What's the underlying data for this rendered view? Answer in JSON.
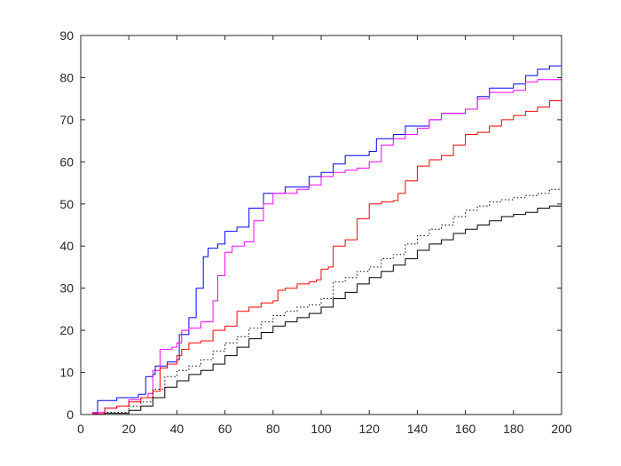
{
  "chart_data": {
    "type": "line",
    "title": "",
    "xlabel": "",
    "ylabel": "",
    "xlim": [
      0,
      200
    ],
    "ylim": [
      0,
      90
    ],
    "grid": false,
    "legend": "none",
    "x_ticks": [
      0,
      20,
      40,
      60,
      80,
      100,
      120,
      140,
      160,
      180,
      200
    ],
    "y_ticks": [
      0,
      10,
      20,
      30,
      40,
      50,
      60,
      70,
      80,
      90
    ],
    "series": [
      {
        "color": "#0000ff",
        "style": "solid",
        "points": [
          [
            0,
            0
          ],
          [
            5,
            0.3
          ],
          [
            7,
            3.3
          ],
          [
            15,
            4
          ],
          [
            20,
            4
          ],
          [
            24,
            4.8
          ],
          [
            27,
            9
          ],
          [
            30,
            9.5
          ],
          [
            31,
            11.5
          ],
          [
            36,
            12.5
          ],
          [
            40,
            13
          ],
          [
            41,
            19
          ],
          [
            45,
            23
          ],
          [
            48,
            30
          ],
          [
            51,
            37.5
          ],
          [
            53,
            39.5
          ],
          [
            57,
            40.5
          ],
          [
            60,
            43.5
          ],
          [
            65,
            44.5
          ],
          [
            70,
            49
          ],
          [
            76,
            52.5
          ],
          [
            85,
            54
          ],
          [
            95,
            56.5
          ],
          [
            100,
            57.5
          ],
          [
            105,
            59.5
          ],
          [
            110,
            61.5
          ],
          [
            120,
            62.5
          ],
          [
            123,
            65.5
          ],
          [
            130,
            66.5
          ],
          [
            135,
            68.5
          ],
          [
            145,
            70
          ],
          [
            150,
            71.5
          ],
          [
            160,
            72.5
          ],
          [
            165,
            75.5
          ],
          [
            170,
            77.5
          ],
          [
            180,
            78.5
          ],
          [
            185,
            80.5
          ],
          [
            190,
            82
          ],
          [
            195,
            82.8
          ],
          [
            200,
            83
          ]
        ]
      },
      {
        "color": "#ff00ff",
        "style": "solid",
        "points": [
          [
            0,
            0
          ],
          [
            5,
            0.5
          ],
          [
            10,
            1.5
          ],
          [
            15,
            2
          ],
          [
            20,
            3.5
          ],
          [
            25,
            4
          ],
          [
            28,
            5
          ],
          [
            30,
            10.5
          ],
          [
            33,
            15.5
          ],
          [
            38,
            16
          ],
          [
            40,
            17
          ],
          [
            42,
            20
          ],
          [
            45,
            20.5
          ],
          [
            50,
            22
          ],
          [
            55,
            27
          ],
          [
            57,
            33
          ],
          [
            60,
            38.5
          ],
          [
            63,
            40
          ],
          [
            68,
            41
          ],
          [
            72,
            46
          ],
          [
            76,
            50
          ],
          [
            80,
            52.5
          ],
          [
            90,
            53.5
          ],
          [
            95,
            54.5
          ],
          [
            100,
            56.5
          ],
          [
            105,
            57.5
          ],
          [
            110,
            58
          ],
          [
            115,
            58.5
          ],
          [
            120,
            60
          ],
          [
            125,
            64
          ],
          [
            130,
            65.5
          ],
          [
            135,
            66.5
          ],
          [
            140,
            68
          ],
          [
            145,
            70
          ],
          [
            150,
            71.5
          ],
          [
            160,
            72.5
          ],
          [
            165,
            75
          ],
          [
            170,
            76.5
          ],
          [
            180,
            77
          ],
          [
            185,
            79
          ],
          [
            190,
            79.5
          ],
          [
            200,
            80
          ]
        ]
      },
      {
        "color": "#ff0000",
        "style": "solid",
        "points": [
          [
            0,
            0
          ],
          [
            5,
            0.2
          ],
          [
            10,
            1.5
          ],
          [
            15,
            2
          ],
          [
            20,
            3
          ],
          [
            25,
            4
          ],
          [
            30,
            5.5
          ],
          [
            33,
            11
          ],
          [
            36,
            12
          ],
          [
            40,
            14
          ],
          [
            42,
            15.5
          ],
          [
            45,
            17
          ],
          [
            50,
            17.5
          ],
          [
            55,
            20
          ],
          [
            60,
            21
          ],
          [
            65,
            24.5
          ],
          [
            70,
            25.5
          ],
          [
            75,
            26.5
          ],
          [
            80,
            27
          ],
          [
            82,
            29.5
          ],
          [
            85,
            30
          ],
          [
            90,
            31
          ],
          [
            95,
            31.5
          ],
          [
            98,
            32
          ],
          [
            100,
            34.5
          ],
          [
            103,
            35
          ],
          [
            105,
            40
          ],
          [
            110,
            41.5
          ],
          [
            115,
            46.5
          ],
          [
            120,
            50
          ],
          [
            125,
            50.5
          ],
          [
            130,
            50.8
          ],
          [
            132,
            52.5
          ],
          [
            135,
            55.5
          ],
          [
            140,
            59
          ],
          [
            145,
            60.5
          ],
          [
            150,
            61.5
          ],
          [
            155,
            64
          ],
          [
            160,
            66.5
          ],
          [
            165,
            67
          ],
          [
            170,
            68.5
          ],
          [
            175,
            70
          ],
          [
            180,
            71
          ],
          [
            185,
            72
          ],
          [
            190,
            73
          ],
          [
            195,
            74.5
          ],
          [
            200,
            76.5
          ]
        ]
      },
      {
        "color": "#000000",
        "style": "dotted",
        "points": [
          [
            0,
            0
          ],
          [
            10,
            0.5
          ],
          [
            20,
            2
          ],
          [
            25,
            3
          ],
          [
            30,
            6
          ],
          [
            35,
            9
          ],
          [
            40,
            10.5
          ],
          [
            45,
            11.5
          ],
          [
            50,
            13
          ],
          [
            55,
            15
          ],
          [
            60,
            17
          ],
          [
            65,
            18.5
          ],
          [
            70,
            20.5
          ],
          [
            75,
            22
          ],
          [
            80,
            23.5
          ],
          [
            85,
            24.5
          ],
          [
            90,
            25.5
          ],
          [
            95,
            26
          ],
          [
            100,
            27.5
          ],
          [
            105,
            31.5
          ],
          [
            110,
            32.5
          ],
          [
            115,
            34
          ],
          [
            120,
            35
          ],
          [
            125,
            37
          ],
          [
            130,
            38
          ],
          [
            135,
            40.5
          ],
          [
            140,
            42.5
          ],
          [
            145,
            44
          ],
          [
            150,
            45
          ],
          [
            155,
            47
          ],
          [
            160,
            48.5
          ],
          [
            165,
            49.5
          ],
          [
            170,
            50.5
          ],
          [
            175,
            51
          ],
          [
            180,
            51.5
          ],
          [
            185,
            52
          ],
          [
            190,
            52.5
          ],
          [
            195,
            53.5
          ],
          [
            200,
            54
          ]
        ]
      },
      {
        "color": "#000000",
        "style": "solid",
        "points": [
          [
            0,
            0
          ],
          [
            10,
            0.3
          ],
          [
            20,
            1
          ],
          [
            25,
            2
          ],
          [
            30,
            4
          ],
          [
            35,
            6.5
          ],
          [
            40,
            8
          ],
          [
            45,
            9.5
          ],
          [
            50,
            10.5
          ],
          [
            55,
            12
          ],
          [
            60,
            14
          ],
          [
            65,
            16
          ],
          [
            70,
            18
          ],
          [
            75,
            19.5
          ],
          [
            80,
            21
          ],
          [
            85,
            22
          ],
          [
            90,
            23
          ],
          [
            95,
            24
          ],
          [
            100,
            25.5
          ],
          [
            105,
            27.5
          ],
          [
            110,
            29
          ],
          [
            115,
            31
          ],
          [
            120,
            32.5
          ],
          [
            125,
            34
          ],
          [
            130,
            35.5
          ],
          [
            135,
            37
          ],
          [
            140,
            39
          ],
          [
            145,
            40.5
          ],
          [
            150,
            41.5
          ],
          [
            155,
            43
          ],
          [
            160,
            44
          ],
          [
            165,
            45
          ],
          [
            170,
            46
          ],
          [
            175,
            47
          ],
          [
            180,
            47.5
          ],
          [
            185,
            48
          ],
          [
            190,
            49
          ],
          [
            195,
            49.5
          ],
          [
            200,
            50.5
          ]
        ]
      }
    ]
  }
}
